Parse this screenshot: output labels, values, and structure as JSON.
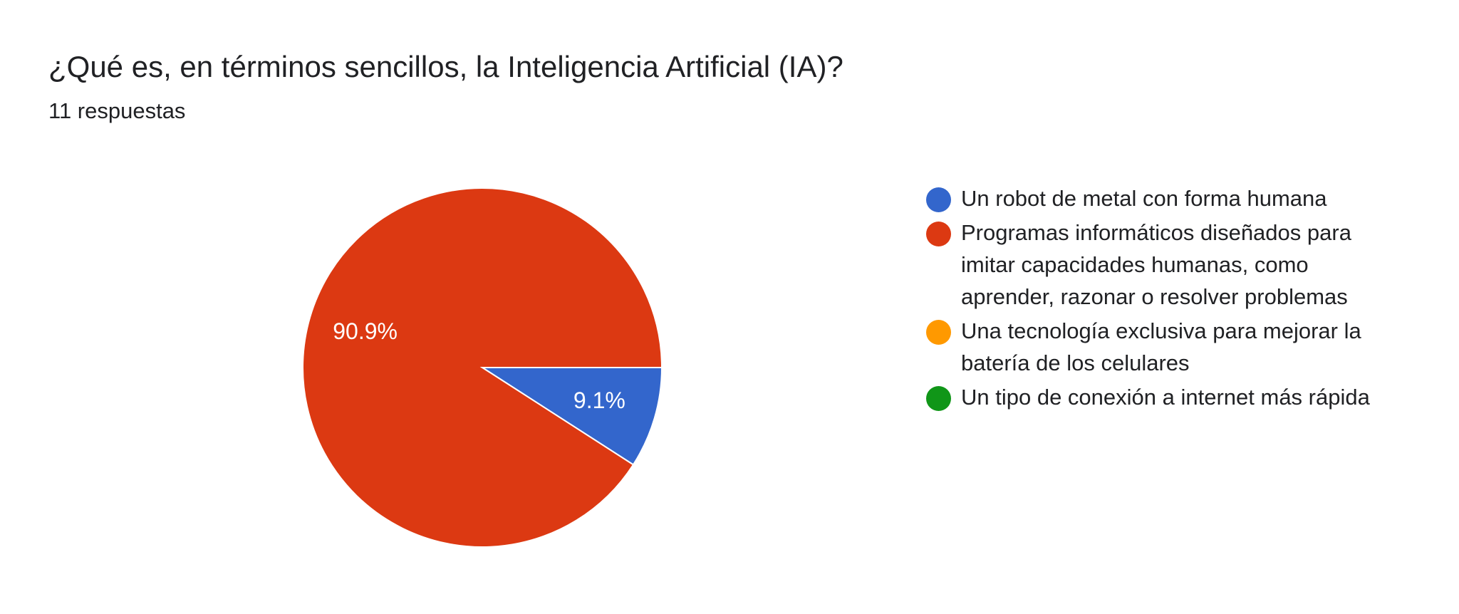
{
  "chart_data": {
    "type": "pie",
    "title": "¿Qué es, en términos sencillos, la Inteligencia Artificial (IA)?",
    "subtitle": "11 respuestas",
    "categories": [
      "Un robot de metal con forma humana",
      "Programas informáticos diseñados para imitar capacidades humanas, como aprender, razonar o resolver problemas",
      "Una tecnología exclusiva para mejorar la batería de los celulares",
      "Un tipo de conexión a internet más rápida"
    ],
    "values": [
      9.1,
      90.9,
      0,
      0
    ],
    "value_labels": [
      "9.1%",
      "90.9%",
      null,
      null
    ],
    "colors": [
      "#3366cc",
      "#dc3912",
      "#ff9900",
      "#109618"
    ],
    "legend": "right"
  }
}
